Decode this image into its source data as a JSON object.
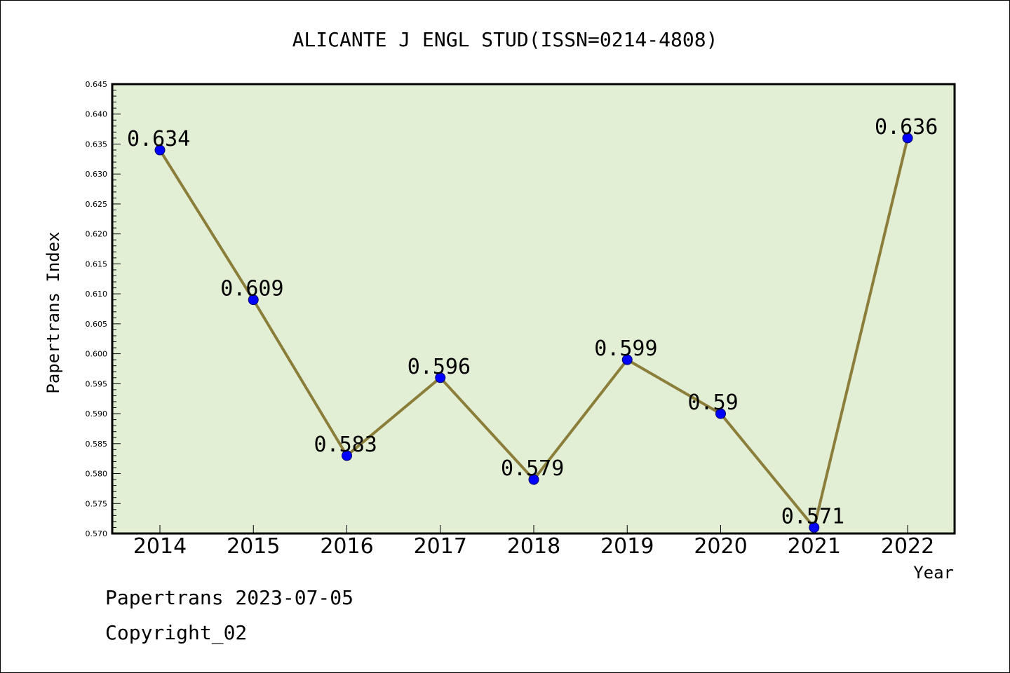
{
  "chart_data": {
    "type": "line",
    "title": "ALICANTE J ENGL STUD(ISSN=0214-4808)",
    "xlabel": "Year",
    "ylabel": "Papertrans Index",
    "categories": [
      "2014",
      "2015",
      "2016",
      "2017",
      "2018",
      "2019",
      "2020",
      "2021",
      "2022"
    ],
    "values": [
      0.634,
      0.609,
      0.583,
      0.596,
      0.579,
      0.599,
      0.59,
      0.571,
      0.636
    ],
    "data_labels": [
      "0.634",
      "0.609",
      "0.583",
      "0.596",
      "0.579",
      "0.599",
      "0.59",
      "0.571",
      "0.636"
    ],
    "ylim": [
      0.57,
      0.645
    ],
    "y_ticks": [
      "0.570",
      "0.575",
      "0.580",
      "0.585",
      "0.590",
      "0.595",
      "0.600",
      "0.605",
      "0.610",
      "0.615",
      "0.620",
      "0.625",
      "0.630",
      "0.635",
      "0.640",
      "0.645"
    ],
    "grid": false,
    "legend": "none",
    "colors": {
      "plot_background": "#e2efd5",
      "line": "#8b7d3a",
      "marker": "#0000ff"
    }
  },
  "footer": {
    "line1": "Papertrans 2023-07-05",
    "line2": "Copyright_02"
  }
}
